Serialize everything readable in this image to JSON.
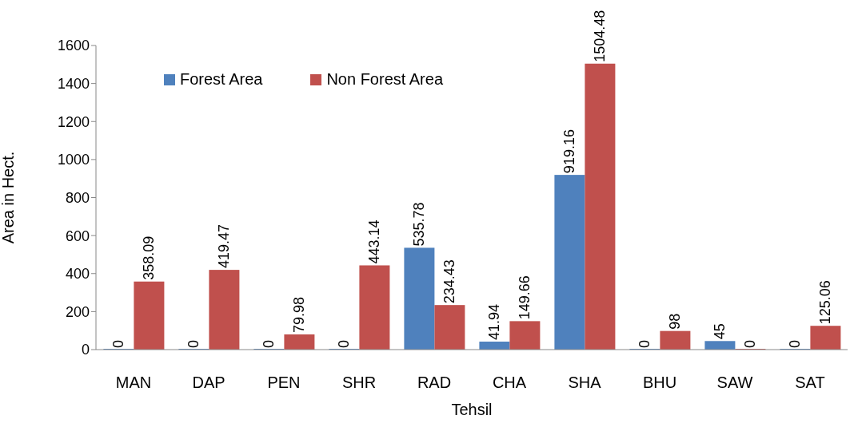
{
  "chart_data": {
    "type": "bar",
    "xlabel": "Tehsil",
    "ylabel": "Area in Hect.",
    "categories": [
      "MAN",
      "DAP",
      "PEN",
      "SHR",
      "RAD",
      "CHA",
      "SHA",
      "BHU",
      "SAW",
      "SAT"
    ],
    "series": [
      {
        "name": "Forest Area",
        "color": "#4f81bd",
        "values": [
          0,
          0,
          0,
          0,
          535.78,
          41.94,
          919.16,
          0,
          45,
          0
        ]
      },
      {
        "name": "Non Forest Area",
        "color": "#c0504d",
        "values": [
          358.09,
          419.47,
          79.98,
          443.14,
          234.43,
          149.66,
          1504.48,
          98,
          0,
          125.06
        ]
      }
    ],
    "ylim": [
      0,
      1600
    ],
    "yticks": [
      0,
      200,
      400,
      600,
      800,
      1000,
      1200,
      1400,
      1600
    ],
    "data_labels": true,
    "legend": "top left",
    "grid": false
  }
}
